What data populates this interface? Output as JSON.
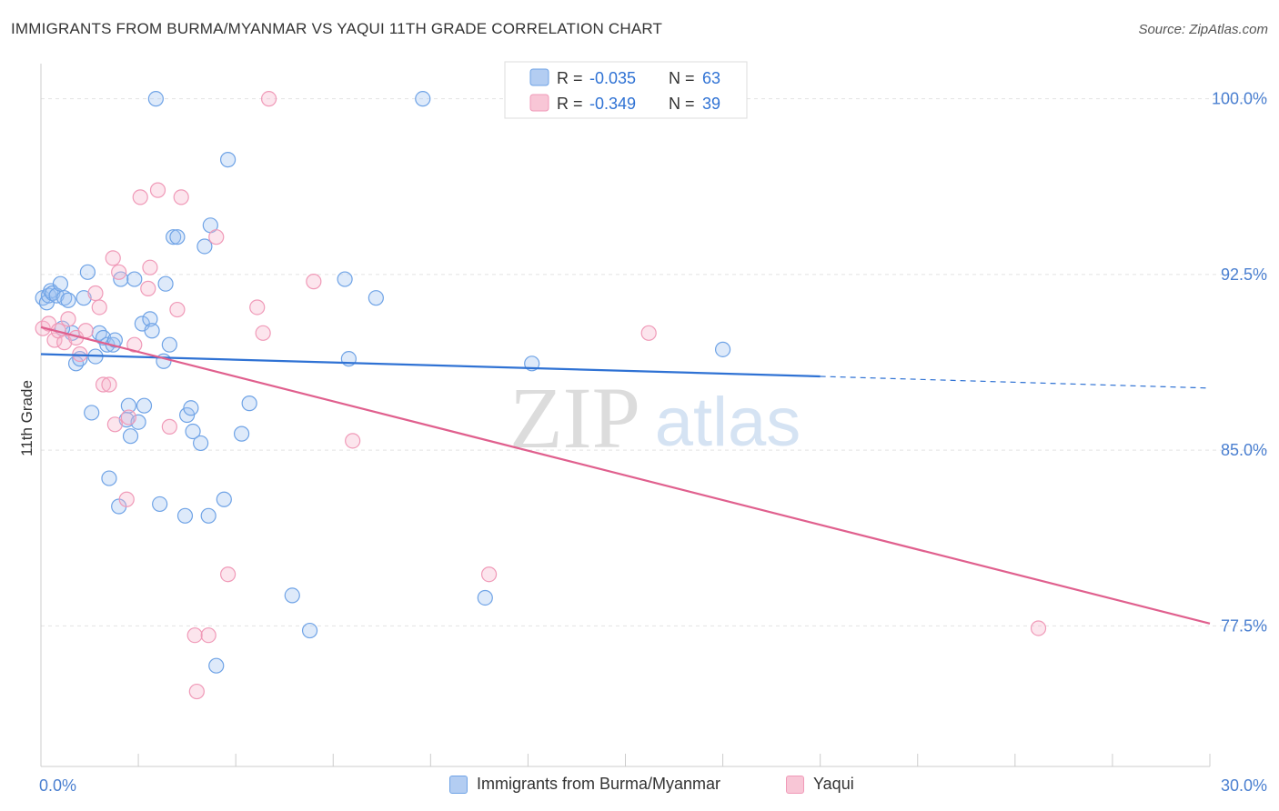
{
  "chart_data": {
    "type": "scatter",
    "title": "IMMIGRANTS FROM BURMA/MYANMAR VS YAQUI 11TH GRADE CORRELATION CHART",
    "source": "Source: ZipAtlas.com",
    "ylabel": "11th Grade",
    "xlim": [
      0,
      30
    ],
    "ylim": [
      71.5,
      101.5
    ],
    "x_tick_labels": [
      "0.0%",
      "30.0%"
    ],
    "y_ticks": [
      77.5,
      85.0,
      92.5,
      100.0
    ],
    "y_tick_labels": [
      "77.5%",
      "85.0%",
      "92.5%",
      "100.0%"
    ],
    "watermark": {
      "zip": "ZIP",
      "atlas": "atlas"
    },
    "legend": [
      {
        "r_label": "R =",
        "r_value": "-0.035",
        "n_label": "N =",
        "n_value": "63"
      },
      {
        "r_label": "R =",
        "r_value": "-0.349",
        "n_label": "N =",
        "n_value": "39"
      }
    ],
    "series": [
      {
        "name": "Immigrants from Burma/Myanmar",
        "color": "#6fa3e6",
        "fill": "rgba(160,196,242,0.35)",
        "line_color": "#2f72d4",
        "trend": {
          "x0": 0.0,
          "y0": 89.1,
          "x1": 20.0,
          "y1": 88.15,
          "dash_to_x": 30.0,
          "dash_to_y": 87.65
        },
        "points": [
          [
            0.05,
            91.5
          ],
          [
            0.15,
            91.3
          ],
          [
            0.2,
            91.6
          ],
          [
            0.25,
            91.8
          ],
          [
            0.3,
            91.7
          ],
          [
            0.4,
            91.6
          ],
          [
            0.5,
            92.1
          ],
          [
            0.6,
            91.5
          ],
          [
            0.7,
            91.4
          ],
          [
            0.8,
            90.0
          ],
          [
            0.9,
            88.7
          ],
          [
            1.0,
            88.9
          ],
          [
            1.1,
            91.5
          ],
          [
            1.2,
            92.6
          ],
          [
            1.3,
            86.6
          ],
          [
            1.4,
            89.0
          ],
          [
            1.5,
            90.0
          ],
          [
            1.6,
            89.8
          ],
          [
            1.7,
            89.5
          ],
          [
            1.75,
            83.8
          ],
          [
            1.85,
            89.5
          ],
          [
            1.9,
            89.7
          ],
          [
            2.0,
            82.6
          ],
          [
            2.05,
            92.3
          ],
          [
            2.2,
            86.3
          ],
          [
            2.25,
            86.9
          ],
          [
            2.3,
            85.6
          ],
          [
            2.4,
            92.3
          ],
          [
            2.5,
            86.2
          ],
          [
            2.6,
            90.4
          ],
          [
            2.65,
            86.9
          ],
          [
            2.8,
            90.6
          ],
          [
            2.85,
            90.1
          ],
          [
            2.95,
            100.0
          ],
          [
            3.05,
            82.7
          ],
          [
            3.15,
            88.8
          ],
          [
            3.2,
            92.1
          ],
          [
            3.3,
            89.5
          ],
          [
            3.4,
            94.1
          ],
          [
            3.5,
            94.1
          ],
          [
            3.7,
            82.2
          ],
          [
            3.75,
            86.5
          ],
          [
            3.85,
            86.8
          ],
          [
            3.9,
            85.8
          ],
          [
            4.1,
            85.3
          ],
          [
            4.2,
            93.7
          ],
          [
            4.3,
            82.2
          ],
          [
            4.35,
            94.6
          ],
          [
            4.5,
            75.8
          ],
          [
            4.7,
            82.9
          ],
          [
            4.8,
            97.4
          ],
          [
            5.15,
            85.7
          ],
          [
            5.35,
            87.0
          ],
          [
            6.45,
            78.8
          ],
          [
            6.9,
            77.3
          ],
          [
            7.8,
            92.3
          ],
          [
            7.9,
            88.9
          ],
          [
            8.6,
            91.5
          ],
          [
            9.8,
            100.0
          ],
          [
            11.4,
            78.7
          ],
          [
            12.6,
            88.7
          ],
          [
            17.5,
            89.3
          ],
          [
            0.55,
            90.2
          ]
        ]
      },
      {
        "name": "Yaqui",
        "color": "#f09ab8",
        "fill": "rgba(246,180,204,0.35)",
        "line_color": "#e0608e",
        "trend": {
          "x0": 0.0,
          "y0": 90.25,
          "x1": 30.0,
          "y1": 77.6
        },
        "points": [
          [
            0.05,
            90.2
          ],
          [
            0.2,
            90.4
          ],
          [
            0.35,
            89.7
          ],
          [
            0.45,
            90.1
          ],
          [
            0.6,
            89.6
          ],
          [
            0.7,
            90.6
          ],
          [
            0.9,
            89.8
          ],
          [
            1.0,
            89.1
          ],
          [
            1.15,
            90.1
          ],
          [
            1.4,
            91.7
          ],
          [
            1.5,
            91.1
          ],
          [
            1.6,
            87.8
          ],
          [
            1.75,
            87.8
          ],
          [
            1.85,
            93.2
          ],
          [
            1.9,
            86.1
          ],
          [
            2.0,
            92.6
          ],
          [
            2.2,
            82.9
          ],
          [
            2.25,
            86.4
          ],
          [
            2.4,
            89.5
          ],
          [
            2.55,
            95.8
          ],
          [
            2.75,
            91.9
          ],
          [
            2.8,
            92.8
          ],
          [
            3.0,
            96.1
          ],
          [
            3.3,
            86.0
          ],
          [
            3.5,
            91.0
          ],
          [
            3.6,
            95.8
          ],
          [
            3.95,
            77.1
          ],
          [
            4.0,
            74.7
          ],
          [
            4.3,
            77.1
          ],
          [
            4.5,
            94.1
          ],
          [
            4.8,
            79.7
          ],
          [
            5.55,
            91.1
          ],
          [
            5.7,
            90.0
          ],
          [
            5.85,
            100.0
          ],
          [
            7.0,
            92.2
          ],
          [
            8.0,
            85.4
          ],
          [
            11.5,
            79.7
          ],
          [
            15.6,
            90.0
          ],
          [
            25.6,
            77.4
          ]
        ]
      }
    ]
  }
}
